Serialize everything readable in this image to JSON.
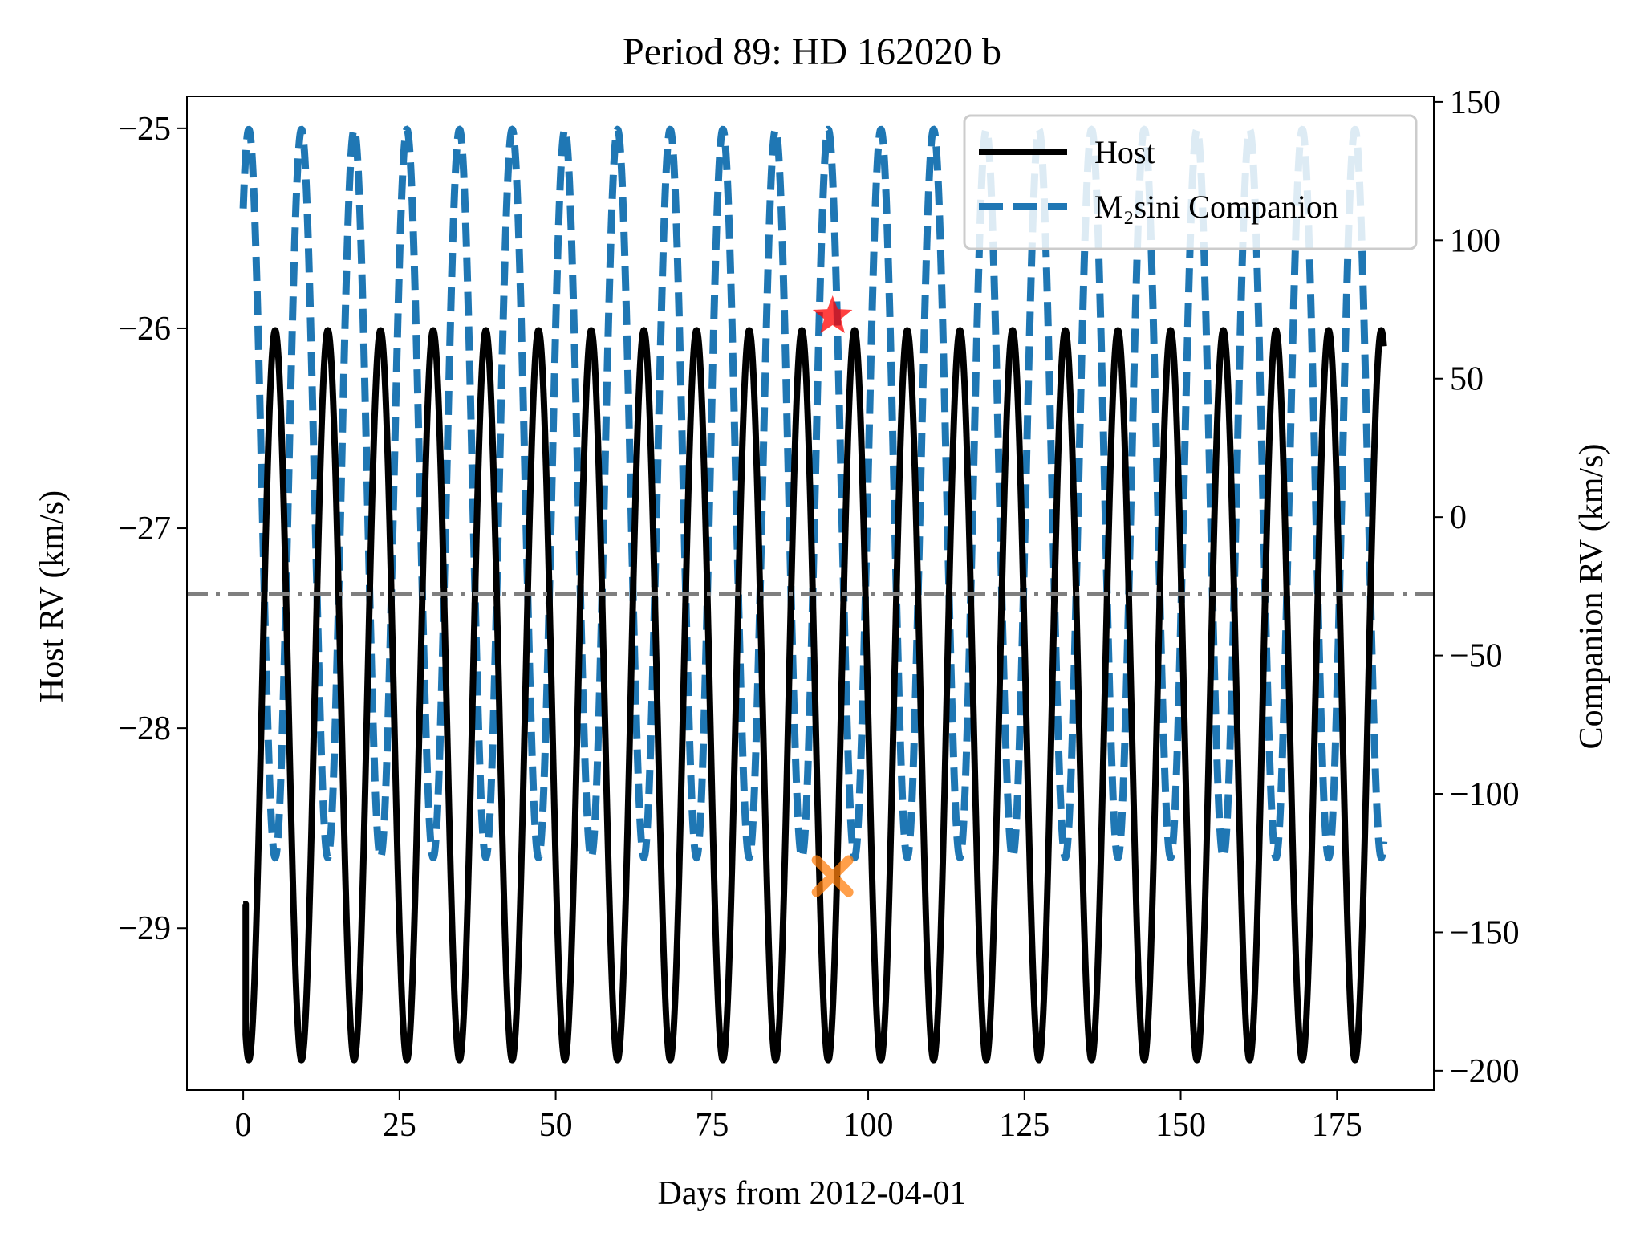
{
  "chart_data": {
    "type": "line",
    "title": "Period 89: HD 162020 b",
    "xlabel": "Days from 2012-04-01",
    "ylabel_left": "Host RV (km/s)",
    "ylabel_right": "Companion RV (km/s)",
    "xlim": [
      -9,
      190.5
    ],
    "ylim_left": [
      -29.81,
      -24.84
    ],
    "ylim_right": [
      -207,
      152
    ],
    "x_ticks": [
      "0",
      "25",
      "50",
      "75",
      "100",
      "125",
      "150",
      "175"
    ],
    "y_ticks_left": [
      "−25",
      "−26",
      "−27",
      "−28",
      "−29"
    ],
    "y_ticks_right": [
      "150",
      "100",
      "50",
      "0",
      "−50",
      "−100",
      "−150",
      "−200"
    ],
    "grid": false,
    "legend_position": "upper right",
    "x_range_model": [
      0,
      182.5
    ],
    "orbit": {
      "period_days": 8.428,
      "host_rv_max": -26.01,
      "host_rv_min": -29.66,
      "companion_rv_max": 140,
      "companion_rv_min": -123,
      "systemic_velocity_kms": -27.33,
      "host_trace_start_day": 0,
      "host_trace_start_value": -28.88
    },
    "series": [
      {
        "name": "Host",
        "axis": "left",
        "color": "#000000",
        "style": "solid"
      },
      {
        "name": "M₂sini Companion",
        "axis": "right",
        "color": "#1f77b4",
        "style": "dashed"
      },
      {
        "axis": "left",
        "color": "#7f7f7f",
        "style": "dashdot",
        "y": -27.33
      }
    ],
    "markers": [
      {
        "axis": "left",
        "x": 94.3,
        "y": -25.94,
        "symbol": "star",
        "color": "#ff0000"
      },
      {
        "axis": "left",
        "x": 94.3,
        "y": -28.74,
        "symbol": "x",
        "color": "#ff7f0e"
      }
    ]
  }
}
